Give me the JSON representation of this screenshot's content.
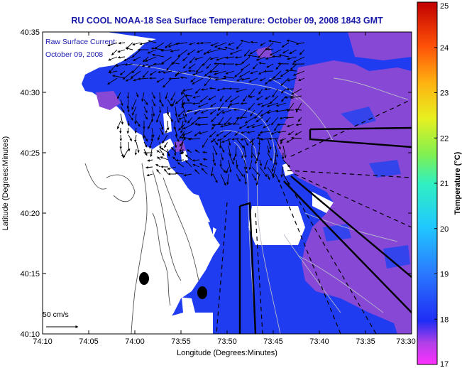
{
  "title": "RU COOL  NOAA-18  Sea Surface Temperature:  October 09, 2008 1843 GMT",
  "legend_line1": "Raw Surface Current:",
  "legend_line2": "October 09, 2008",
  "scale_arrow_label": "50 cm/s",
  "xlabel": "Longitude (Degrees:Minutes)",
  "ylabel": "Latitude (Degrees:Minutes)",
  "x_ticks": [
    "74:10",
    "74:05",
    "74:00",
    "73:55",
    "73:50",
    "73:45",
    "73:40",
    "73:35",
    "73:30"
  ],
  "y_ticks": [
    "40:35",
    "40:30",
    "40:25",
    "40:20",
    "40:15",
    "40:10"
  ],
  "colorbar": {
    "label": "Temperature (°C)",
    "ticks": [
      "25",
      "24",
      "23",
      "22",
      "21",
      "20",
      "19",
      "18",
      "17"
    ],
    "min": 17,
    "max": 25
  },
  "colors": {
    "title": "#1a1aa8",
    "sst_blue": "#1f3cf0",
    "sst_purple": "#8a4ad8",
    "land": "#ffffff"
  }
}
